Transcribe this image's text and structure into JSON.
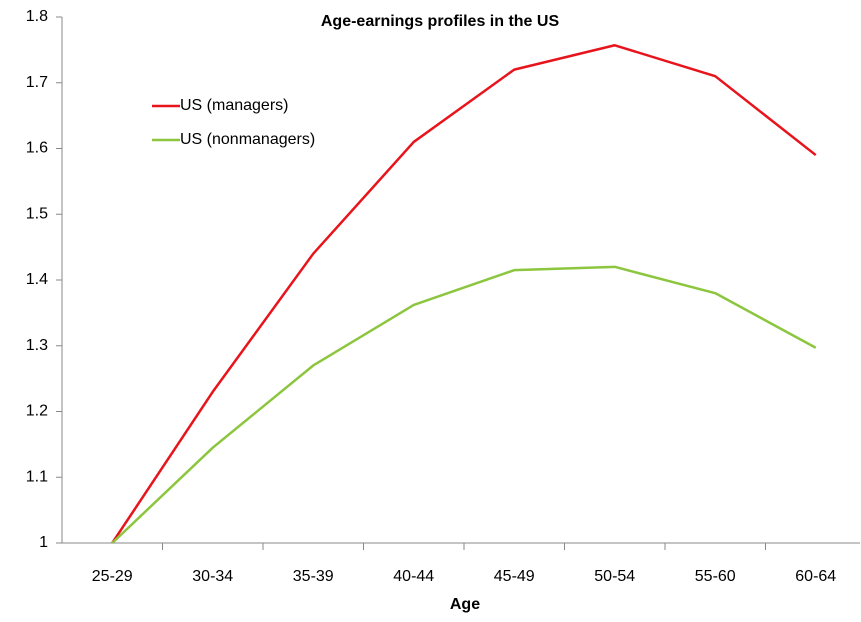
{
  "chart_data": {
    "type": "line",
    "title": "Age-earnings profiles in the US",
    "x_label": "Age",
    "categories": [
      "25-29",
      "30-34",
      "35-39",
      "40-44",
      "45-49",
      "50-54",
      "55-60",
      "60-64"
    ],
    "series": [
      {
        "name": "US (managers)",
        "color": "#e8141c",
        "values": [
          1,
          1.23,
          1.44,
          1.61,
          1.72,
          1.757,
          1.71,
          1.59
        ]
      },
      {
        "name": "US (nonmanagers)",
        "color": "#8cc63f",
        "values": [
          1,
          1.145,
          1.27,
          1.362,
          1.415,
          1.42,
          1.38,
          1.297
        ]
      }
    ],
    "ylim": [
      1,
      1.8
    ],
    "yticks": [
      1,
      1.1,
      1.2,
      1.3,
      1.4,
      1.5,
      1.6,
      1.7,
      1.8
    ],
    "grid": false,
    "legend": "upper left"
  }
}
